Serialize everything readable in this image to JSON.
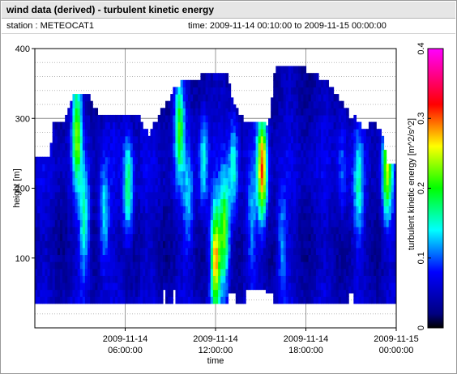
{
  "header": {
    "title": "wind data (derived) - turbulent kinetic energy",
    "station": "station : METEOCAT1",
    "time_range": "time: 2009-11-14 00:10:00 to 2009-11-15 00:00:00"
  },
  "chart_data": {
    "type": "heatmap",
    "title": "wind data (derived) - turbulent kinetic energy",
    "xlabel": "time",
    "ylabel": "height [m]",
    "colorbar_label": "turbulent kinetic energy [m^2/s^2]",
    "x_range_hours": [
      0,
      24
    ],
    "x_ticks": [
      {
        "hour": 6,
        "line1": "2009-11-14",
        "line2": "06:00:00"
      },
      {
        "hour": 12,
        "line1": "2009-11-14",
        "line2": "12:00:00"
      },
      {
        "hour": 18,
        "line1": "2009-11-14",
        "line2": "18:00:00"
      },
      {
        "hour": 24,
        "line1": "2009-11-15",
        "line2": "00:00:00"
      }
    ],
    "ylim": [
      0,
      400
    ],
    "y_ticks": [
      100,
      200,
      300,
      400
    ],
    "colorbar_range": [
      0,
      0.4
    ],
    "colorbar_ticks": [
      0,
      0.1,
      0.2,
      0.3,
      0.4
    ],
    "colormap": "jet-magenta",
    "grid": true,
    "data_top_height_m_by_hour": [
      {
        "hour": 0.0,
        "top": 235
      },
      {
        "hour": 1.0,
        "top": 235
      },
      {
        "hour": 1.2,
        "top": 290
      },
      {
        "hour": 2.0,
        "top": 290
      },
      {
        "hour": 2.6,
        "top": 330
      },
      {
        "hour": 3.6,
        "top": 330
      },
      {
        "hour": 4.3,
        "top": 295
      },
      {
        "hour": 7.0,
        "top": 295
      },
      {
        "hour": 7.6,
        "top": 270
      },
      {
        "hour": 8.2,
        "top": 300
      },
      {
        "hour": 8.8,
        "top": 320
      },
      {
        "hour": 9.4,
        "top": 340
      },
      {
        "hour": 10.0,
        "top": 350
      },
      {
        "hour": 11.0,
        "top": 355
      },
      {
        "hour": 12.2,
        "top": 360
      },
      {
        "hour": 12.8,
        "top": 360
      },
      {
        "hour": 13.2,
        "top": 320
      },
      {
        "hour": 13.8,
        "top": 295
      },
      {
        "hour": 14.0,
        "top": 285
      },
      {
        "hour": 15.5,
        "top": 285
      },
      {
        "hour": 15.8,
        "top": 345
      },
      {
        "hour": 16.0,
        "top": 365
      },
      {
        "hour": 18.0,
        "top": 365
      },
      {
        "hour": 19.5,
        "top": 345
      },
      {
        "hour": 20.0,
        "top": 330
      },
      {
        "hour": 20.6,
        "top": 310
      },
      {
        "hour": 21.2,
        "top": 300
      },
      {
        "hour": 21.8,
        "top": 280
      },
      {
        "hour": 22.6,
        "top": 290
      },
      {
        "hour": 23.0,
        "top": 275
      },
      {
        "hour": 23.5,
        "top": 225
      },
      {
        "hour": 24.0,
        "top": 225
      }
    ],
    "data_bottom_height_m": 35,
    "tke_hotspots": [
      {
        "hour": 2.8,
        "height": 280,
        "tke": 0.22
      },
      {
        "hour": 3.3,
        "height": 150,
        "tke": 0.16
      },
      {
        "hour": 4.6,
        "height": 160,
        "tke": 0.14
      },
      {
        "hour": 6.2,
        "height": 200,
        "tke": 0.18
      },
      {
        "hour": 9.6,
        "height": 290,
        "tke": 0.2
      },
      {
        "hour": 10.2,
        "height": 180,
        "tke": 0.12
      },
      {
        "hour": 11.2,
        "height": 240,
        "tke": 0.14
      },
      {
        "hour": 12.0,
        "height": 100,
        "tke": 0.28
      },
      {
        "hour": 12.6,
        "height": 140,
        "tke": 0.22
      },
      {
        "hour": 13.2,
        "height": 230,
        "tke": 0.15
      },
      {
        "hour": 14.4,
        "height": 150,
        "tke": 0.11
      },
      {
        "hour": 15.1,
        "height": 230,
        "tke": 0.3
      },
      {
        "hour": 16.4,
        "height": 120,
        "tke": 0.12
      },
      {
        "hour": 20.4,
        "height": 230,
        "tke": 0.1
      },
      {
        "hour": 21.5,
        "height": 200,
        "tke": 0.14
      },
      {
        "hour": 23.4,
        "height": 230,
        "tke": 0.24
      }
    ],
    "gaps_below_cells": [
      {
        "hour_start": 8.5,
        "hour_end": 8.6,
        "height_top": 55
      },
      {
        "hour_start": 9.2,
        "hour_end": 9.3,
        "height_top": 55
      },
      {
        "hour_start": 12.8,
        "hour_end": 13.4,
        "height_top": 50
      },
      {
        "hour_start": 14.0,
        "hour_end": 15.4,
        "height_top": 55
      },
      {
        "hour_start": 15.4,
        "hour_end": 15.8,
        "height_top": 50
      },
      {
        "hour_start": 20.8,
        "hour_end": 21.2,
        "height_top": 50
      }
    ]
  }
}
